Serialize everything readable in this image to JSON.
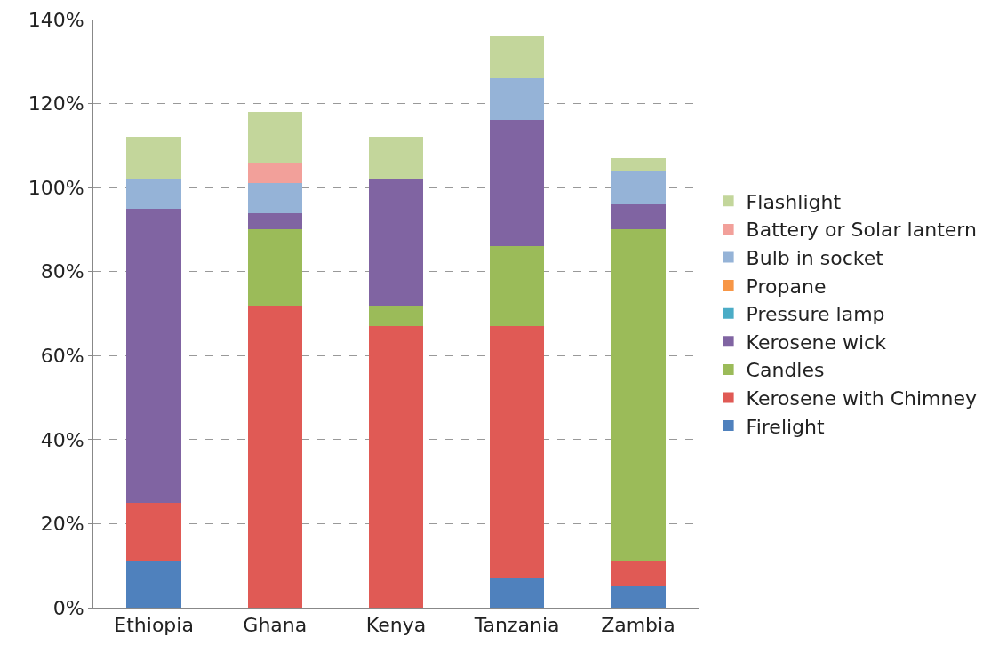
{
  "chart_data": {
    "type": "bar",
    "stacked": true,
    "categories": [
      "Ethiopia",
      "Ghana",
      "Kenya",
      "Tanzania",
      "Zambia"
    ],
    "series": [
      {
        "name": "Firelight",
        "color": "#4f81bd",
        "values": [
          11,
          0,
          0,
          7,
          5
        ]
      },
      {
        "name": "Kerosene with Chimney",
        "color": "#e05a55",
        "values": [
          14,
          72,
          67,
          60,
          6
        ]
      },
      {
        "name": "Candles",
        "color": "#9bbb59",
        "values": [
          0,
          18,
          5,
          19,
          79
        ]
      },
      {
        "name": "Kerosene wick",
        "color": "#8064a2",
        "values": [
          70,
          4,
          30,
          30,
          6
        ]
      },
      {
        "name": "Pressure lamp",
        "color": "#4bacc6",
        "values": [
          0,
          0,
          0,
          0,
          0
        ]
      },
      {
        "name": "Propane",
        "color": "#f79646",
        "values": [
          0,
          0,
          0,
          0,
          0
        ]
      },
      {
        "name": "Bulb in socket",
        "color": "#95b3d7",
        "values": [
          7,
          7,
          0,
          10,
          8
        ]
      },
      {
        "name": "Battery or Solar lantern",
        "color": "#f2a09a",
        "values": [
          0,
          5,
          0,
          0,
          0
        ]
      },
      {
        "name": "Flashlight",
        "color": "#c3d69b",
        "values": [
          10,
          12,
          10,
          10,
          3
        ]
      }
    ],
    "ylim": [
      0,
      140
    ],
    "yticks": [
      {
        "value": 0,
        "label": "0%"
      },
      {
        "value": 20,
        "label": "20%"
      },
      {
        "value": 40,
        "label": "40%"
      },
      {
        "value": 60,
        "label": "60%"
      },
      {
        "value": 80,
        "label": "80%"
      },
      {
        "value": 100,
        "label": "100%"
      },
      {
        "value": 120,
        "label": "120%"
      },
      {
        "value": 140,
        "label": "140%"
      }
    ],
    "grid": "y",
    "legend": "right"
  }
}
